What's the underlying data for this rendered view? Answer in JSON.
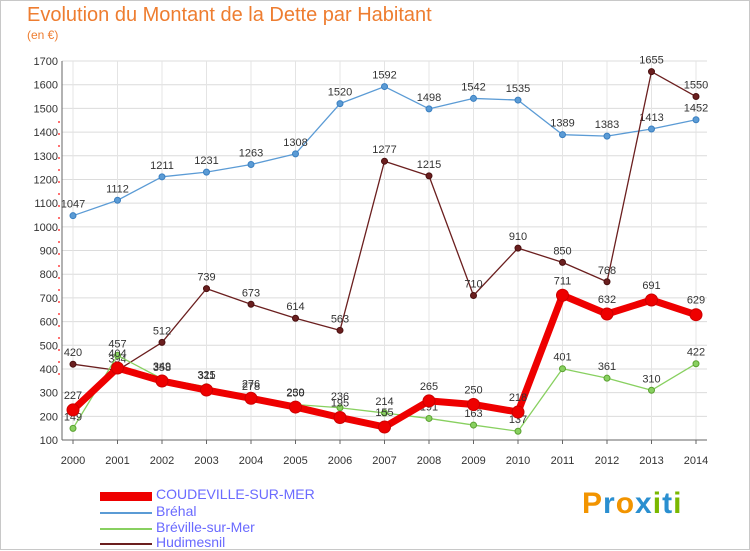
{
  "title": "Evolution du Montant de la Dette par Habitant",
  "unit": "(en €)",
  "brand": {
    "letters": [
      "P",
      "r",
      "o",
      "x",
      "i",
      "t",
      "i"
    ],
    "colors": [
      "#f29400",
      "#2a8fd0",
      "#f29400",
      "#2a8fd0",
      "#7ab800",
      "#2a8fd0",
      "#7ab800"
    ]
  },
  "chart_data": {
    "type": "line",
    "x": [
      "2000",
      "2001",
      "2002",
      "2003",
      "2004",
      "2005",
      "2006",
      "2007",
      "2008",
      "2009",
      "2010",
      "2011",
      "2012",
      "2013",
      "2014"
    ],
    "ylim": [
      100,
      1700
    ],
    "yticks": [
      100,
      200,
      300,
      400,
      500,
      600,
      700,
      800,
      900,
      1000,
      1100,
      1200,
      1300,
      1400,
      1500,
      1600,
      1700
    ],
    "grid": true,
    "legend_position": "bottom-left",
    "series": [
      {
        "name": "Bréhal",
        "color": "#5b9bd5",
        "values": [
          1047,
          1112,
          1211,
          1231,
          1263,
          1308,
          1520,
          1592,
          1498,
          1542,
          1535,
          1389,
          1383,
          1413,
          1452
        ]
      },
      {
        "name": "Hudimesnil",
        "color": "#6b1f1f",
        "values": [
          420,
          394,
          512,
          739,
          673,
          614,
          563,
          1277,
          1215,
          710,
          910,
          850,
          768,
          1655,
          1550
        ]
      },
      {
        "name": "Bréville-sur-Mer",
        "color": "#88d060",
        "values": [
          149,
          457,
          358,
          325,
          278,
          250,
          236,
          214,
          191,
          163,
          137,
          401,
          361,
          310,
          422
        ]
      },
      {
        "name": "COUDEVILLE-SUR-MER",
        "color": "#ee0000",
        "values": [
          227,
          404,
          349,
          311,
          276,
          239,
          195,
          155,
          265,
          250,
          218,
          711,
          632,
          691,
          629
        ]
      }
    ]
  },
  "legend": [
    {
      "name": "COUDEVILLE-SUR-MER",
      "color": "#ee0000"
    },
    {
      "name": "Bréhal",
      "color": "#5b9bd5"
    },
    {
      "name": "Bréville-sur-Mer",
      "color": "#88d060"
    },
    {
      "name": "Hudimesnil",
      "color": "#6b1f1f"
    }
  ]
}
